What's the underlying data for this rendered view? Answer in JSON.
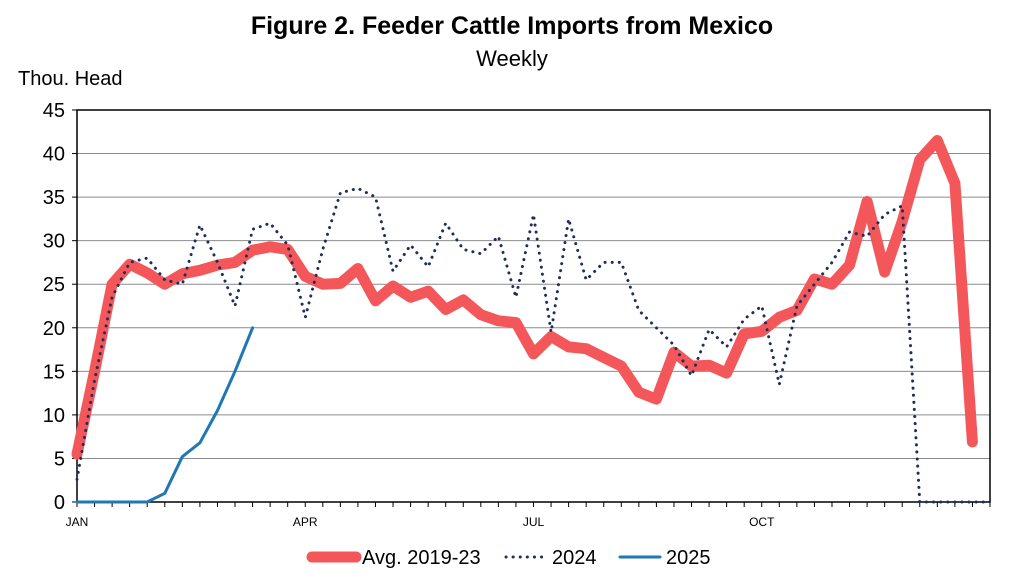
{
  "chart_data": {
    "type": "line",
    "title": "Figure 2. Feeder Cattle Imports from Mexico",
    "subtitle": "Weekly",
    "ylabel": "Thou. Head",
    "xlabel": "",
    "ylim": [
      0,
      45
    ],
    "yticks": [
      "0",
      "5",
      "10",
      "15",
      "20",
      "25",
      "30",
      "35",
      "40",
      "45"
    ],
    "x_range": [
      1,
      53
    ],
    "x_ticks": [
      {
        "label": "JAN",
        "week": 1
      },
      {
        "label": "APR",
        "week": 14
      },
      {
        "label": "JUL",
        "week": 27
      },
      {
        "label": "OCT",
        "week": 40
      }
    ],
    "grid": true,
    "legend_position": "bottom",
    "series": [
      {
        "name": "Avg. 2019-23",
        "color": "#F4575A",
        "style": "solid-thick",
        "values": [
          5.5,
          15,
          25,
          27.3,
          26.3,
          25,
          26.2,
          26.6,
          27.2,
          27.5,
          28.9,
          29.3,
          29,
          25.9,
          25,
          25.1,
          26.8,
          23.1,
          24.8,
          23.5,
          24.2,
          22.1,
          23.2,
          21.5,
          20.8,
          20.6,
          17,
          19,
          17.8,
          17.6,
          16.6,
          15.6,
          12.6,
          11.8,
          17.2,
          15.6,
          15.7,
          14.8,
          19.3,
          19.6,
          21.2,
          22,
          25.6,
          25,
          27.2,
          34.5,
          26.4,
          32.2,
          39.3,
          41.5,
          36.6,
          6.9
        ]
      },
      {
        "name": "2024",
        "color": "#1F2D5A",
        "style": "dotted",
        "values": [
          2.6,
          14,
          23.5,
          27.5,
          28,
          25.5,
          25,
          31.8,
          27.5,
          22.5,
          31.3,
          32,
          29.5,
          21.2,
          29,
          35.5,
          36,
          35,
          26.5,
          29.5,
          27,
          32,
          29,
          28.5,
          30.5,
          23.5,
          33,
          19.5,
          32.5,
          25.5,
          27.5,
          27.5,
          22,
          20,
          18,
          14.5,
          19.8,
          17.8,
          21,
          22.5,
          13.5,
          22.5,
          25,
          27.5,
          31,
          30.5,
          33,
          34,
          0,
          0,
          0,
          0,
          0
        ]
      },
      {
        "name": "2025",
        "color": "#1F77B4",
        "style": "solid",
        "values": [
          0,
          0,
          0,
          0,
          0,
          1,
          5.2,
          6.8,
          10.5,
          15,
          20
        ]
      }
    ]
  }
}
